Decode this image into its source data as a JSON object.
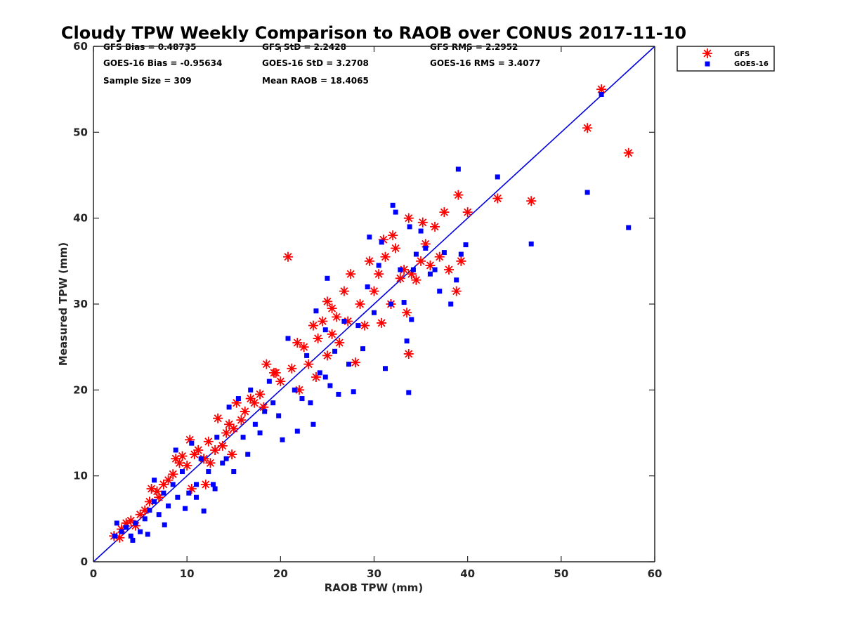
{
  "chart_data": {
    "type": "scatter",
    "title": "Cloudy TPW Weekly Comparison to RAOB over CONUS 2017-11-10",
    "xlabel": "RAOB TPW (mm)",
    "ylabel": "Measured TPW (mm)",
    "xlim": [
      0,
      60
    ],
    "ylim": [
      0,
      60
    ],
    "xticks": [
      "0",
      "10",
      "20",
      "30",
      "40",
      "50",
      "60"
    ],
    "yticks": [
      "0",
      "10",
      "20",
      "30",
      "40",
      "50",
      "60"
    ],
    "grid": false,
    "legend_position": "top-right outside",
    "stats": [
      [
        "GFS Bias = 0.48735",
        "GFS StD = 2.2428",
        "GFS RMS = 2.2952"
      ],
      [
        "GOES-16 Bias = -0.95634",
        "GOES-16 StD = 3.2708",
        "GOES-16 RMS = 3.4077"
      ],
      [
        "Sample Size = 309",
        "Mean RAOB = 18.4065",
        ""
      ]
    ],
    "reference_line": {
      "x": [
        0,
        60
      ],
      "y": [
        0,
        60
      ],
      "color": "#0000dd"
    },
    "series": [
      {
        "name": "GFS",
        "marker": "asterisk",
        "color": "#ff0000",
        "points": [
          [
            2.2,
            3.0
          ],
          [
            2.8,
            2.8
          ],
          [
            3.0,
            3.8
          ],
          [
            3.5,
            4.5
          ],
          [
            4.0,
            4.8
          ],
          [
            4.5,
            4.2
          ],
          [
            5.0,
            5.5
          ],
          [
            5.5,
            6.0
          ],
          [
            6.0,
            7.0
          ],
          [
            6.2,
            8.5
          ],
          [
            6.8,
            8.2
          ],
          [
            7.0,
            7.5
          ],
          [
            7.5,
            9.0
          ],
          [
            8.0,
            9.5
          ],
          [
            8.5,
            10.2
          ],
          [
            8.8,
            12.0
          ],
          [
            9.2,
            11.5
          ],
          [
            9.5,
            12.3
          ],
          [
            10.0,
            11.2
          ],
          [
            10.3,
            14.2
          ],
          [
            10.8,
            12.5
          ],
          [
            11.2,
            13.0
          ],
          [
            11.8,
            12.0
          ],
          [
            12.3,
            14.0
          ],
          [
            12.5,
            11.5
          ],
          [
            13.0,
            13.0
          ],
          [
            13.3,
            16.7
          ],
          [
            13.8,
            13.5
          ],
          [
            14.2,
            15.0
          ],
          [
            14.5,
            16.0
          ],
          [
            15.0,
            15.5
          ],
          [
            15.3,
            18.5
          ],
          [
            15.8,
            16.5
          ],
          [
            16.2,
            17.5
          ],
          [
            16.8,
            19.0
          ],
          [
            17.2,
            18.5
          ],
          [
            17.8,
            19.5
          ],
          [
            18.2,
            18.0
          ],
          [
            18.5,
            23.0
          ],
          [
            19.5,
            22.0
          ],
          [
            20.0,
            21.0
          ],
          [
            20.8,
            35.5
          ],
          [
            21.2,
            22.5
          ],
          [
            21.8,
            25.5
          ],
          [
            22.0,
            20.0
          ],
          [
            22.5,
            25.0
          ],
          [
            23.0,
            23.0
          ],
          [
            23.5,
            27.5
          ],
          [
            23.8,
            21.5
          ],
          [
            24.0,
            26.0
          ],
          [
            24.5,
            28.0
          ],
          [
            25.0,
            30.3
          ],
          [
            25.0,
            24.0
          ],
          [
            25.5,
            26.5
          ],
          [
            26.0,
            28.5
          ],
          [
            26.3,
            25.5
          ],
          [
            26.8,
            31.5
          ],
          [
            27.2,
            28.0
          ],
          [
            27.5,
            33.5
          ],
          [
            28.0,
            23.2
          ],
          [
            28.5,
            30.0
          ],
          [
            29.0,
            27.5
          ],
          [
            29.5,
            35.0
          ],
          [
            30.0,
            31.5
          ],
          [
            30.5,
            33.5
          ],
          [
            30.8,
            27.8
          ],
          [
            31.2,
            35.5
          ],
          [
            31.8,
            30.0
          ],
          [
            32.0,
            38.0
          ],
          [
            32.3,
            36.5
          ],
          [
            32.8,
            33.0
          ],
          [
            33.2,
            34.0
          ],
          [
            33.5,
            29.0
          ],
          [
            33.7,
            24.2
          ],
          [
            34.0,
            33.5
          ],
          [
            34.5,
            32.8
          ],
          [
            35.0,
            35.0
          ],
          [
            35.2,
            39.5
          ],
          [
            35.5,
            37.0
          ],
          [
            36.0,
            34.5
          ],
          [
            36.5,
            39.0
          ],
          [
            37.0,
            35.5
          ],
          [
            37.5,
            40.7
          ],
          [
            38.0,
            34.0
          ],
          [
            38.8,
            31.5
          ],
          [
            39.0,
            42.7
          ],
          [
            39.3,
            35.0
          ],
          [
            40.0,
            40.7
          ],
          [
            43.2,
            42.3
          ],
          [
            46.8,
            42.0
          ],
          [
            52.8,
            50.5
          ],
          [
            54.3,
            55.0
          ],
          [
            57.2,
            47.6
          ],
          [
            33.7,
            40.0
          ],
          [
            31.0,
            37.5
          ],
          [
            25.5,
            29.5
          ],
          [
            19.3,
            22.0
          ],
          [
            10.5,
            8.5
          ],
          [
            12.0,
            9.0
          ],
          [
            14.8,
            12.5
          ]
        ]
      },
      {
        "name": "GOES-16",
        "marker": "square",
        "color": "#0000ff",
        "points": [
          [
            2.3,
            3.0
          ],
          [
            2.5,
            4.5
          ],
          [
            3.0,
            3.5
          ],
          [
            3.5,
            4.0
          ],
          [
            4.0,
            3.0
          ],
          [
            4.2,
            2.5
          ],
          [
            4.5,
            4.5
          ],
          [
            5.0,
            3.5
          ],
          [
            5.5,
            5.0
          ],
          [
            5.8,
            3.2
          ],
          [
            6.0,
            6.0
          ],
          [
            6.5,
            7.0
          ],
          [
            7.0,
            5.5
          ],
          [
            7.5,
            8.0
          ],
          [
            7.6,
            4.3
          ],
          [
            8.0,
            6.5
          ],
          [
            8.5,
            9.0
          ],
          [
            8.8,
            13.0
          ],
          [
            9.0,
            7.5
          ],
          [
            9.5,
            10.5
          ],
          [
            9.8,
            6.2
          ],
          [
            10.2,
            8.0
          ],
          [
            10.5,
            13.8
          ],
          [
            11.0,
            9.0
          ],
          [
            11.5,
            12.0
          ],
          [
            11.8,
            5.9
          ],
          [
            12.3,
            10.5
          ],
          [
            12.8,
            9.0
          ],
          [
            13.2,
            14.5
          ],
          [
            13.8,
            11.5
          ],
          [
            14.2,
            12.0
          ],
          [
            14.5,
            18.0
          ],
          [
            15.0,
            10.5
          ],
          [
            15.5,
            19.0
          ],
          [
            16.0,
            14.5
          ],
          [
            16.5,
            12.5
          ],
          [
            16.8,
            20.0
          ],
          [
            17.3,
            16.0
          ],
          [
            17.8,
            15.0
          ],
          [
            18.3,
            17.5
          ],
          [
            18.8,
            21.0
          ],
          [
            19.2,
            18.5
          ],
          [
            19.8,
            17.0
          ],
          [
            20.2,
            14.2
          ],
          [
            20.8,
            26.0
          ],
          [
            21.5,
            20.0
          ],
          [
            21.8,
            15.2
          ],
          [
            22.3,
            19.0
          ],
          [
            22.8,
            24.0
          ],
          [
            23.2,
            18.5
          ],
          [
            23.5,
            16.0
          ],
          [
            23.8,
            29.2
          ],
          [
            24.2,
            22.0
          ],
          [
            24.8,
            27.0
          ],
          [
            25.0,
            33.0
          ],
          [
            25.3,
            20.5
          ],
          [
            25.8,
            24.5
          ],
          [
            26.2,
            19.5
          ],
          [
            26.8,
            28.0
          ],
          [
            27.3,
            23.0
          ],
          [
            27.8,
            19.8
          ],
          [
            28.3,
            27.5
          ],
          [
            28.8,
            24.8
          ],
          [
            29.3,
            32.0
          ],
          [
            29.5,
            37.8
          ],
          [
            30.0,
            29.0
          ],
          [
            30.5,
            34.5
          ],
          [
            30.8,
            37.2
          ],
          [
            31.2,
            22.5
          ],
          [
            31.8,
            30.0
          ],
          [
            32.0,
            41.5
          ],
          [
            32.3,
            40.7
          ],
          [
            32.8,
            34.0
          ],
          [
            33.2,
            30.2
          ],
          [
            33.5,
            25.7
          ],
          [
            33.7,
            19.7
          ],
          [
            34.0,
            28.2
          ],
          [
            34.5,
            35.8
          ],
          [
            35.0,
            38.5
          ],
          [
            35.5,
            36.5
          ],
          [
            36.0,
            33.5
          ],
          [
            36.5,
            34.0
          ],
          [
            37.0,
            31.5
          ],
          [
            37.5,
            36.0
          ],
          [
            38.2,
            30.0
          ],
          [
            38.8,
            32.8
          ],
          [
            39.0,
            45.7
          ],
          [
            39.3,
            35.8
          ],
          [
            39.8,
            36.9
          ],
          [
            43.2,
            44.8
          ],
          [
            46.8,
            37.0
          ],
          [
            52.8,
            43.0
          ],
          [
            54.3,
            54.4
          ],
          [
            57.2,
            38.9
          ],
          [
            33.8,
            39.0
          ],
          [
            34.2,
            34.0
          ],
          [
            24.8,
            21.5
          ],
          [
            13.0,
            8.5
          ],
          [
            11.0,
            7.5
          ],
          [
            6.5,
            9.5
          ]
        ]
      }
    ]
  }
}
